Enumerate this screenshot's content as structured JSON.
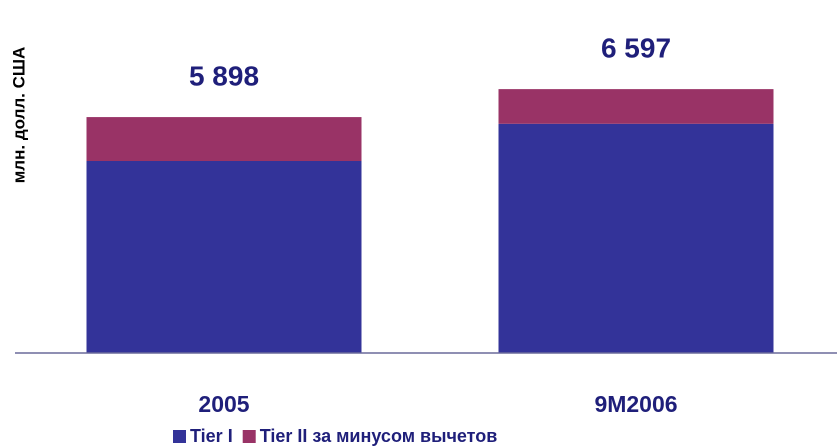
{
  "chart_data": {
    "type": "stacked_bar",
    "y_label": "млн. долл. США",
    "categories": [
      "2005",
      "9M2006"
    ],
    "series": [
      {
        "name": "Tier I",
        "color": "#333399",
        "values": [
          4800,
          5730
        ]
      },
      {
        "name": "Tier II за минусом вычетов",
        "color": "#993366",
        "values": [
          1098,
          867
        ]
      }
    ],
    "totals": {
      "values": [
        5898,
        6597
      ],
      "value_labels": [
        "5 898",
        "6 597"
      ],
      "color": "#1f1f7a"
    },
    "ylim": [
      0,
      8750
    ],
    "legend": "bottom"
  }
}
